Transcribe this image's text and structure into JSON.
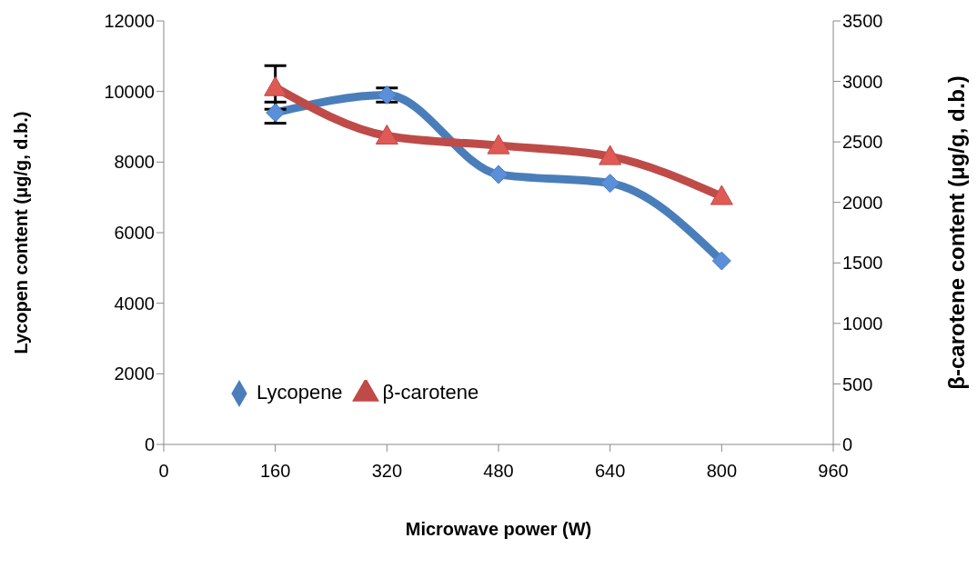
{
  "chart_data": {
    "type": "line",
    "xlabel": "Microwave power (W)",
    "ylabel": "Lycopen content (μg/g, d.b.)",
    "y2label": "β-carotene content (μg/g, d.b.)",
    "x": [
      160,
      320,
      480,
      640,
      800
    ],
    "series": [
      {
        "name": "Lycopene",
        "color": "#4a7ebb",
        "marker": "diamond",
        "values": [
          9400,
          9900,
          7650,
          7400,
          5200
        ],
        "errors": [
          300,
          200,
          null,
          null,
          null
        ]
      },
      {
        "name": "β-carotene",
        "color": "#be4b48",
        "marker": "triangle",
        "axis": "y2",
        "values": [
          2950,
          2550,
          2470,
          2380,
          2050
        ],
        "errors": [
          180,
          null,
          null,
          null,
          null
        ]
      }
    ],
    "xlim": [
      0,
      960
    ],
    "xticks": [
      0,
      160,
      320,
      480,
      640,
      800,
      960
    ],
    "ylim": [
      0,
      12000
    ],
    "yticks": [
      0,
      2000,
      4000,
      6000,
      8000,
      10000,
      12000
    ],
    "y2lim": [
      0,
      3500
    ],
    "y2ticks": [
      0,
      500,
      1000,
      1500,
      2000,
      2500,
      3000,
      3500
    ],
    "legend": "bottom left"
  }
}
